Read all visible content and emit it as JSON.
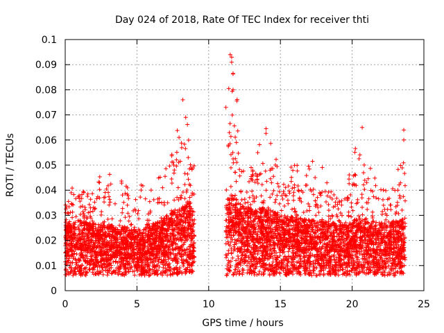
{
  "chart_data": {
    "type": "scatter",
    "title": "Day 024 of 2018, Rate Of TEC Index for receiver thti",
    "xlabel": "GPS time / hours",
    "ylabel": "ROTI / TECUs",
    "xlim": [
      0,
      25
    ],
    "ylim": [
      0,
      0.1
    ],
    "x_ticks": [
      "0",
      "5",
      "10",
      "15",
      "20",
      "25"
    ],
    "y_ticks": [
      "0",
      "0.01",
      "0.02",
      "0.03",
      "0.04",
      "0.05",
      "0.06",
      "0.07",
      "0.08",
      "0.09",
      "0.1"
    ],
    "grid": true,
    "marker": "+",
    "marker_color": "#ff0000",
    "series": [
      {
        "name": "ROTI",
        "segments": [
          {
            "x_start": 0.0,
            "x_end": 9.0
          },
          {
            "x_start": 11.2,
            "x_end": 23.7
          }
        ],
        "profile": [
          {
            "x": 0.0,
            "typical": 0.015,
            "max": 0.034
          },
          {
            "x": 0.8,
            "typical": 0.017,
            "max": 0.047
          },
          {
            "x": 1.5,
            "typical": 0.016,
            "max": 0.04
          },
          {
            "x": 2.5,
            "typical": 0.015,
            "max": 0.046
          },
          {
            "x": 3.5,
            "typical": 0.015,
            "max": 0.052
          },
          {
            "x": 4.5,
            "typical": 0.014,
            "max": 0.04
          },
          {
            "x": 5.5,
            "typical": 0.014,
            "max": 0.043
          },
          {
            "x": 6.5,
            "typical": 0.016,
            "max": 0.045
          },
          {
            "x": 7.5,
            "typical": 0.019,
            "max": 0.058
          },
          {
            "x": 8.2,
            "typical": 0.021,
            "max": 0.076
          },
          {
            "x": 8.6,
            "typical": 0.022,
            "max": 0.066
          },
          {
            "x": 9.0,
            "typical": 0.018,
            "max": 0.05
          },
          {
            "x": 11.2,
            "typical": 0.022,
            "max": 0.058
          },
          {
            "x": 11.6,
            "typical": 0.024,
            "max": 0.094
          },
          {
            "x": 12.5,
            "typical": 0.02,
            "max": 0.052
          },
          {
            "x": 14.0,
            "typical": 0.02,
            "max": 0.065
          },
          {
            "x": 15.0,
            "typical": 0.018,
            "max": 0.048
          },
          {
            "x": 16.5,
            "typical": 0.017,
            "max": 0.053
          },
          {
            "x": 18.0,
            "typical": 0.016,
            "max": 0.05
          },
          {
            "x": 19.5,
            "typical": 0.015,
            "max": 0.042
          },
          {
            "x": 20.5,
            "typical": 0.017,
            "max": 0.065
          },
          {
            "x": 21.5,
            "typical": 0.015,
            "max": 0.045
          },
          {
            "x": 23.0,
            "typical": 0.016,
            "max": 0.044
          },
          {
            "x": 23.6,
            "typical": 0.017,
            "max": 0.064
          }
        ],
        "notable_points": [
          {
            "x": 8.2,
            "y": 0.076
          },
          {
            "x": 8.4,
            "y": 0.069
          },
          {
            "x": 11.5,
            "y": 0.094
          },
          {
            "x": 11.6,
            "y": 0.093
          },
          {
            "x": 11.6,
            "y": 0.091
          },
          {
            "x": 11.7,
            "y": 0.0865
          },
          {
            "x": 11.7,
            "y": 0.08
          },
          {
            "x": 11.4,
            "y": 0.0805
          },
          {
            "x": 11.2,
            "y": 0.073
          },
          {
            "x": 14.0,
            "y": 0.0645
          },
          {
            "x": 20.7,
            "y": 0.065
          },
          {
            "x": 23.6,
            "y": 0.064
          },
          {
            "x": 23.6,
            "y": 0.06
          }
        ]
      }
    ]
  }
}
